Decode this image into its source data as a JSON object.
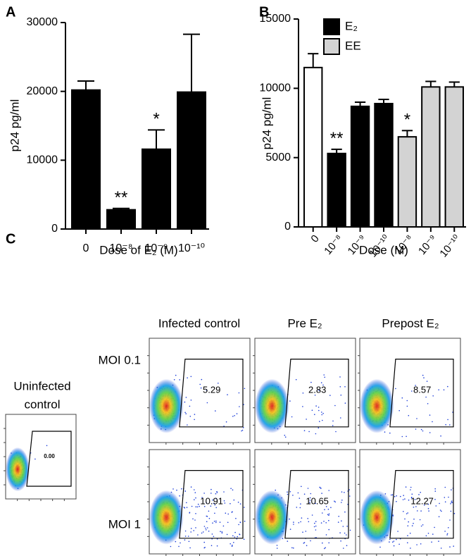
{
  "chart_data": [
    {
      "type": "bar",
      "panel_label": "A",
      "xlabel": "Dose of E₂ (M)",
      "ylabel": "p24 pg/ml",
      "categories": [
        "0",
        "10⁻⁸",
        "10⁻⁹",
        "10⁻¹⁰"
      ],
      "values": [
        20200,
        2800,
        11600,
        19900
      ],
      "errors": [
        1300,
        200,
        2800,
        8400
      ],
      "significance": [
        null,
        "**",
        "*",
        null
      ],
      "color": "#000000",
      "ylim": [
        0,
        30000
      ],
      "yticks": [
        0,
        10000,
        20000,
        30000
      ]
    },
    {
      "type": "bar",
      "panel_label": "B",
      "xlabel": "Dose (M)",
      "ylabel": "p24 pg/ml",
      "categories": [
        "0",
        "10⁻⁸",
        "10⁻⁹",
        "10⁻¹⁰",
        "10⁻⁸",
        "10⁻⁹",
        "10⁻¹⁰"
      ],
      "values": [
        11500,
        5300,
        8700,
        8900,
        6500,
        10100,
        10100
      ],
      "errors": [
        1000,
        300,
        300,
        300,
        450,
        400,
        350
      ],
      "significance": [
        null,
        "**",
        null,
        null,
        "*",
        null,
        null
      ],
      "colors": [
        "#ffffff",
        "#000000",
        "#000000",
        "#000000",
        "#d3d3d3",
        "#d3d3d3",
        "#d3d3d3"
      ],
      "legend": [
        {
          "name": "E₂",
          "color": "#000000"
        },
        {
          "name": "EE",
          "color": "#d3d3d3"
        }
      ],
      "ylim": [
        0,
        15000
      ],
      "yticks": [
        0,
        5000,
        10000,
        15000
      ]
    }
  ],
  "flow": {
    "panel_label": "C",
    "columns": [
      "Infected control",
      "Pre E₂",
      "Prepost E₂"
    ],
    "rows": [
      {
        "label": "MOI 0.1",
        "gates": [
          "5.29",
          "2.83",
          "8.57"
        ]
      },
      {
        "label": "MOI 1",
        "gates": [
          "10.91",
          "10.65",
          "12.27"
        ]
      }
    ],
    "uninfected": {
      "label": [
        "Uninfected",
        "control"
      ],
      "gate": "0.00"
    }
  }
}
